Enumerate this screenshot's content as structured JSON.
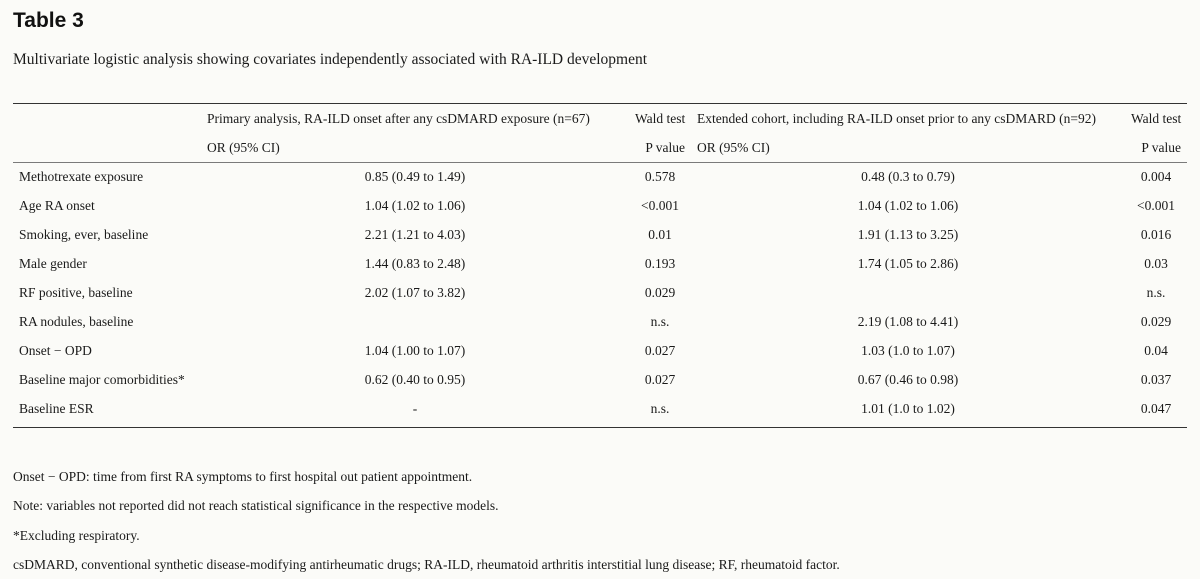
{
  "title": "Table 3",
  "caption": "Multivariate logistic analysis showing covariates independently associated with RA-ILD development",
  "table": {
    "group_headers": [
      "Primary analysis, RA-ILD onset after any csDMARD exposure (n=67)",
      "Wald test",
      "Extended cohort, including RA-ILD onset prior to any csDMARD (n=92)",
      "Wald test"
    ],
    "sub_headers": [
      "OR (95% CI)",
      "P value",
      "OR (95% CI)",
      "P value"
    ],
    "rows": [
      {
        "variable": "Methotrexate exposure",
        "or1": "0.85 (0.49 to 1.49)",
        "p1": "0.578",
        "or2": "0.48 (0.3 to 0.79)",
        "p2": "0.004"
      },
      {
        "variable": "Age RA onset",
        "or1": "1.04 (1.02 to 1.06)",
        "p1": "<0.001",
        "or2": "1.04 (1.02 to 1.06)",
        "p2": "<0.001"
      },
      {
        "variable": "Smoking, ever, baseline",
        "or1": "2.21 (1.21 to 4.03)",
        "p1": "0.01",
        "or2": "1.91 (1.13 to 3.25)",
        "p2": "0.016"
      },
      {
        "variable": "Male gender",
        "or1": "1.44 (0.83 to 2.48)",
        "p1": "0.193",
        "or2": "1.74 (1.05 to 2.86)",
        "p2": "0.03"
      },
      {
        "variable": "RF positive, baseline",
        "or1": "2.02 (1.07 to 3.82)",
        "p1": "0.029",
        "or2": "",
        "p2": "n.s."
      },
      {
        "variable": "RA nodules, baseline",
        "or1": "",
        "p1": "n.s.",
        "or2": "2.19 (1.08 to 4.41)",
        "p2": "0.029"
      },
      {
        "variable": "Onset − OPD",
        "or1": "1.04 (1.00 to 1.07)",
        "p1": "0.027",
        "or2": "1.03 (1.0 to 1.07)",
        "p2": "0.04"
      },
      {
        "variable": "Baseline major comorbidities*",
        "or1": "0.62 (0.40 to 0.95)",
        "p1": "0.027",
        "or2": "0.67 (0.46 to 0.98)",
        "p2": "0.037"
      },
      {
        "variable": "Baseline ESR",
        "or1": "-",
        "p1": "n.s.",
        "or2": "1.01 (1.0 to 1.02)",
        "p2": "0.047"
      }
    ]
  },
  "notes": [
    "Onset − OPD: time from first RA symptoms to first hospital out patient appointment.",
    "Note: variables not reported did not reach statistical significance in the respective models.",
    "*Excluding respiratory.",
    "csDMARD, conventional synthetic disease-modifying antirheumatic drugs; RA-ILD, rheumatoid arthritis interstitial lung disease; RF, rheumatoid factor."
  ]
}
